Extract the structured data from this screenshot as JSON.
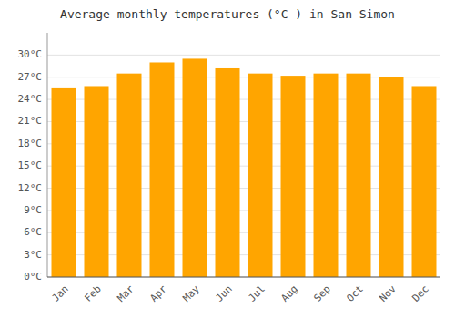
{
  "chart_data": {
    "type": "bar",
    "title": "Average monthly temperatures (°C ) in San Simon",
    "categories": [
      "Jan",
      "Feb",
      "Mar",
      "Apr",
      "May",
      "Jun",
      "Jul",
      "Aug",
      "Sep",
      "Oct",
      "Nov",
      "Dec"
    ],
    "values": [
      25.5,
      25.8,
      27.5,
      29.0,
      29.5,
      28.2,
      27.5,
      27.2,
      27.5,
      27.5,
      27.0,
      25.8
    ],
    "color": "#FFA500",
    "ylim": [
      0,
      33
    ],
    "yticks": [
      {
        "value": 0,
        "label": "0°C"
      },
      {
        "value": 3,
        "label": "3°C"
      },
      {
        "value": 6,
        "label": "6°C"
      },
      {
        "value": 9,
        "label": "9°C"
      },
      {
        "value": 12,
        "label": "12°C"
      },
      {
        "value": 15,
        "label": "15°C"
      },
      {
        "value": 18,
        "label": "18°C"
      },
      {
        "value": 21,
        "label": "21°C"
      },
      {
        "value": 24,
        "label": "24°C"
      },
      {
        "value": 27,
        "label": "27°C"
      },
      {
        "value": 30,
        "label": "30°C"
      }
    ],
    "grid": true
  }
}
